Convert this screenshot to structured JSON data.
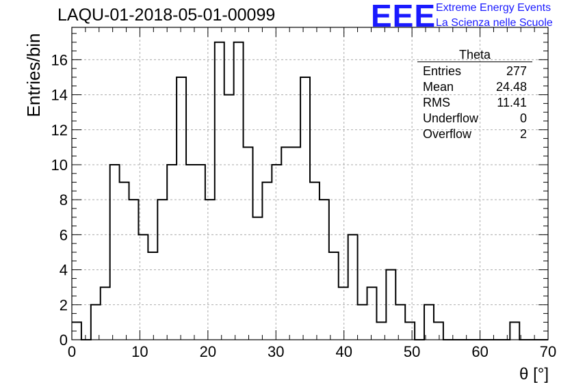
{
  "title": "LAQU-01-2018-05-01-00099",
  "logo": {
    "mark": "EEE",
    "line1": "Extreme Energy Events",
    "line2": "La Scienza nelle Scuole",
    "color": "#1a1aff"
  },
  "stats": {
    "title": "Theta",
    "rows": [
      {
        "label": "Entries",
        "value": "277"
      },
      {
        "label": "Mean",
        "value": "24.48"
      },
      {
        "label": "RMS",
        "value": "11.41"
      },
      {
        "label": "Underflow",
        "value": "0"
      },
      {
        "label": "Overflow",
        "value": "2"
      }
    ]
  },
  "chart_data": {
    "type": "bar",
    "histogram": true,
    "title": "LAQU-01-2018-05-01-00099",
    "xlabel": "θ [°]",
    "ylabel": "Entries/bin",
    "xlim": [
      0,
      70
    ],
    "ylim": [
      0,
      17.85
    ],
    "bin_width": 1.4,
    "x_ticks": [
      0,
      10,
      20,
      30,
      40,
      50,
      60,
      70
    ],
    "y_ticks": [
      0,
      2,
      4,
      6,
      8,
      10,
      12,
      14,
      16
    ],
    "grid": true,
    "values": [
      1,
      0,
      2,
      3,
      10,
      9,
      8,
      6,
      5,
      8,
      10,
      15,
      10,
      10,
      8,
      17,
      14,
      17,
      11,
      7,
      9,
      10,
      11,
      11,
      15,
      9,
      8,
      5,
      3,
      6,
      2,
      3,
      1,
      4,
      2,
      1,
      0,
      2,
      1,
      0,
      0,
      0,
      0,
      0,
      0,
      0,
      1,
      0,
      0,
      0
    ],
    "line_color": "#000000"
  }
}
